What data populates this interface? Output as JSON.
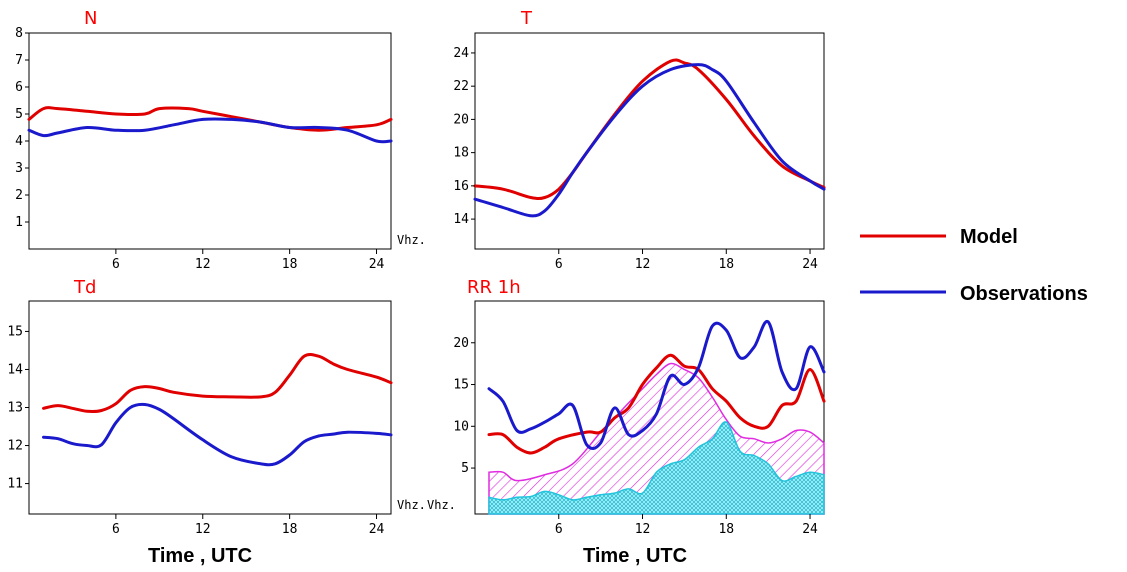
{
  "colors": {
    "model": "#e00000",
    "observations": "#1a1acc",
    "magenta": "#e02be0",
    "cyan": "#22c4dc"
  },
  "legend": [
    {
      "name": "Model",
      "color": "#e00000"
    },
    {
      "name": "Observations",
      "color": "#1a1acc"
    }
  ],
  "xlabel_left": "Time , UTC",
  "xlabel_right": "Time , UTC",
  "chart_data": [
    {
      "id": "N",
      "type": "line",
      "title": "N",
      "unit_label": "Vhz.",
      "xlim": [
        0,
        25
      ],
      "xticks": [
        6,
        12,
        18,
        24
      ],
      "ylim": [
        0,
        8
      ],
      "yticks": [
        1,
        2,
        3,
        4,
        5,
        6,
        7,
        8
      ],
      "series": [
        {
          "name": "Model",
          "color": "#e00000",
          "x": [
            0,
            1,
            2,
            4,
            6,
            8,
            9,
            11,
            12,
            14,
            16,
            18,
            20,
            22,
            24,
            25
          ],
          "y": [
            4.8,
            5.2,
            5.2,
            5.1,
            5.0,
            5.0,
            5.2,
            5.2,
            5.1,
            4.9,
            4.7,
            4.5,
            4.4,
            4.5,
            4.6,
            4.8
          ]
        },
        {
          "name": "Observations",
          "color": "#1a1acc",
          "x": [
            0,
            1,
            2,
            4,
            6,
            8,
            10,
            12,
            14,
            16,
            18,
            20,
            22,
            24,
            25
          ],
          "y": [
            4.4,
            4.2,
            4.3,
            4.5,
            4.4,
            4.4,
            4.6,
            4.8,
            4.8,
            4.7,
            4.5,
            4.5,
            4.4,
            4.0,
            4.0
          ]
        }
      ]
    },
    {
      "id": "T",
      "type": "line",
      "title": "T",
      "unit_label": "",
      "xlim": [
        0,
        25
      ],
      "xticks": [
        6,
        12,
        18,
        24
      ],
      "ylim": [
        12.2,
        25.2
      ],
      "yticks": [
        14,
        16,
        18,
        20,
        22,
        24
      ],
      "series": [
        {
          "name": "Model",
          "color": "#e00000",
          "x": [
            0,
            2,
            4,
            5,
            6,
            7,
            8,
            10,
            12,
            14,
            15,
            16,
            18,
            20,
            22,
            24,
            25
          ],
          "y": [
            16.0,
            15.8,
            15.3,
            15.3,
            15.8,
            16.8,
            18.0,
            20.3,
            22.3,
            23.5,
            23.4,
            23.0,
            21.2,
            19.0,
            17.2,
            16.3,
            15.9
          ]
        },
        {
          "name": "Observations",
          "color": "#1a1acc",
          "x": [
            0,
            2,
            4,
            5,
            6,
            7,
            8,
            10,
            12,
            14,
            16,
            17,
            18,
            20,
            22,
            24,
            25
          ],
          "y": [
            15.2,
            14.7,
            14.2,
            14.5,
            15.5,
            16.8,
            18.0,
            20.2,
            22.0,
            23.0,
            23.3,
            23.0,
            22.3,
            19.8,
            17.5,
            16.3,
            15.8
          ]
        }
      ]
    },
    {
      "id": "Td",
      "type": "line",
      "title": "Td",
      "unit_label": "Vhz.",
      "xlim": [
        0,
        25
      ],
      "xticks": [
        6,
        12,
        18,
        24
      ],
      "ylim": [
        10.2,
        15.8
      ],
      "yticks": [
        11,
        12,
        13,
        14,
        15
      ],
      "series": [
        {
          "name": "Model",
          "color": "#e00000",
          "x": [
            1,
            2,
            3,
            4,
            5,
            6,
            7,
            8,
            9,
            10,
            12,
            14,
            16,
            17,
            18,
            19,
            20,
            21,
            22,
            24,
            25
          ],
          "y": [
            12.98,
            13.05,
            12.98,
            12.9,
            12.92,
            13.1,
            13.45,
            13.55,
            13.5,
            13.4,
            13.3,
            13.28,
            13.28,
            13.4,
            13.85,
            14.35,
            14.35,
            14.15,
            14.0,
            13.8,
            13.65
          ]
        },
        {
          "name": "Observations",
          "color": "#1a1acc",
          "x": [
            1,
            2,
            3,
            4,
            5,
            6,
            7,
            8,
            9,
            10,
            12,
            14,
            16,
            17,
            18,
            19,
            20,
            21,
            22,
            24,
            25
          ],
          "y": [
            12.22,
            12.18,
            12.05,
            12.0,
            12.02,
            12.6,
            13.0,
            13.08,
            12.95,
            12.7,
            12.15,
            11.7,
            11.52,
            11.52,
            11.75,
            12.1,
            12.25,
            12.3,
            12.35,
            12.32,
            12.28
          ]
        }
      ]
    },
    {
      "id": "RR",
      "type": "area",
      "title": "RR  1h",
      "unit_label": "Vhz.",
      "xlim": [
        0,
        25
      ],
      "xticks": [
        6,
        12,
        18,
        24
      ],
      "ylim": [
        -0.5,
        25.0
      ],
      "yticks": [
        5,
        10,
        15,
        20
      ],
      "series": [
        {
          "name": "Model",
          "color": "#e00000",
          "x": [
            1,
            2,
            3,
            4,
            5,
            6,
            8,
            9,
            10,
            11,
            12,
            13,
            14,
            15,
            16,
            17,
            18,
            19,
            20,
            21,
            22,
            23,
            24,
            25
          ],
          "y": [
            9,
            9,
            7.5,
            6.8,
            7.5,
            8.5,
            9.3,
            9.3,
            11,
            12.2,
            15,
            17,
            18.5,
            17.2,
            16.8,
            14.5,
            13,
            11,
            10,
            10,
            12.5,
            13,
            16.8,
            13
          ]
        },
        {
          "name": "Observations",
          "color": "#1a1acc",
          "x": [
            1,
            2,
            3,
            4,
            5,
            6,
            7,
            8,
            9,
            10,
            11,
            12,
            13,
            14,
            15,
            16,
            17,
            18,
            19,
            20,
            21,
            22,
            23,
            24,
            25
          ],
          "y": [
            14.5,
            13,
            9.5,
            9.7,
            10.5,
            11.5,
            12.5,
            7.8,
            8,
            12.2,
            9,
            9.5,
            11.5,
            16,
            15,
            17,
            22,
            21.5,
            18.2,
            19.5,
            22.5,
            16.5,
            14.5,
            19.5,
            16.5
          ]
        },
        {
          "name": "",
          "color": "#e02be0",
          "fill": "hatched",
          "x": [
            1,
            2,
            3,
            5,
            7,
            9,
            10,
            11,
            12,
            13,
            14,
            15,
            16,
            17,
            18,
            19,
            20,
            21,
            22,
            23,
            24,
            25
          ],
          "y": [
            4.5,
            4.5,
            3.5,
            4.2,
            5.5,
            9.3,
            11,
            12.8,
            14.5,
            16.2,
            17.5,
            16.8,
            15.8,
            13.5,
            10.8,
            8.8,
            8.5,
            8.0,
            8.5,
            9.5,
            9.3,
            8.0
          ]
        },
        {
          "name": "",
          "color": "#22c4dc",
          "fill": "crosshatched",
          "x": [
            1,
            2,
            3,
            4,
            5,
            6,
            7,
            8,
            9,
            10,
            11,
            12,
            13,
            14,
            15,
            16,
            17,
            18,
            19,
            20,
            21,
            22,
            23,
            24,
            25
          ],
          "y": [
            1.5,
            1.2,
            1.5,
            1.6,
            2.2,
            1.8,
            1.2,
            1.5,
            1.8,
            2.0,
            2.5,
            2.0,
            4.5,
            5.5,
            6.0,
            7.5,
            8.5,
            10.5,
            7.0,
            6.5,
            5.5,
            3.5,
            4.0,
            4.5,
            4.2
          ]
        }
      ]
    }
  ]
}
